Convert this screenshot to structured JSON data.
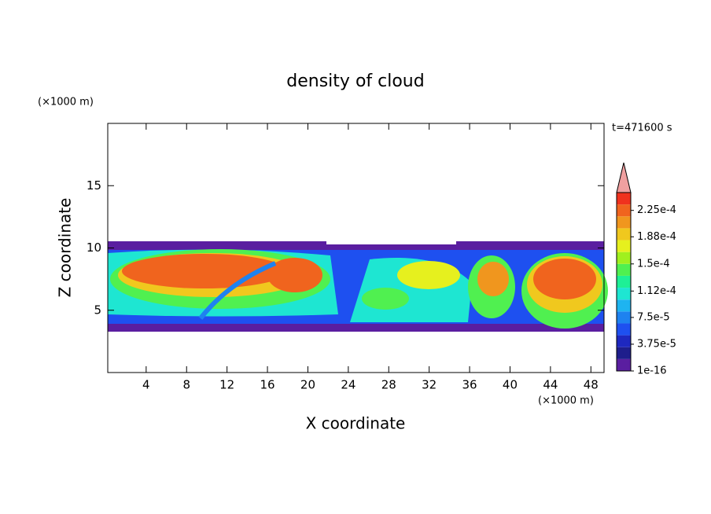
{
  "chart_data": {
    "type": "contour",
    "title": "density of cloud",
    "annotation": "t=471600 s",
    "x_label": "X coordinate",
    "y_label": "Z coordinate",
    "x_unit": "(×1000 m)",
    "y_unit": "(×1000 m)",
    "xlim": [
      0.2,
      49.3
    ],
    "ylim": [
      0,
      20
    ],
    "xticks": [
      4,
      8,
      12,
      16,
      20,
      24,
      28,
      32,
      36,
      40,
      44,
      48
    ],
    "yticks": [
      5,
      10,
      15
    ],
    "colorbar": {
      "clim": [
        1e-16,
        0.00025
      ],
      "colors": [
        "#5a1ea0",
        "#1e1e8c",
        "#1e28c0",
        "#1e50f0",
        "#1e82f0",
        "#1eb4f0",
        "#1ee6d2",
        "#1ef096",
        "#50f050",
        "#a0f01e",
        "#e6f01e",
        "#f0c81e",
        "#f0961e",
        "#f0641e",
        "#f0321e"
      ],
      "extend_color": "#f0a0a0",
      "ticks": [
        {
          "value": 1e-16,
          "label": "1e-16"
        },
        {
          "value": 3.75e-05,
          "label": "3.75e-5"
        },
        {
          "value": 7.5e-05,
          "label": "7.5e-5"
        },
        {
          "value": 0.000112,
          "label": "1.12e-4"
        },
        {
          "value": 0.00015,
          "label": "1.5e-4"
        },
        {
          "value": 0.000188,
          "label": "1.88e-4"
        },
        {
          "value": 0.000225,
          "label": "2.25e-4"
        }
      ]
    }
  }
}
